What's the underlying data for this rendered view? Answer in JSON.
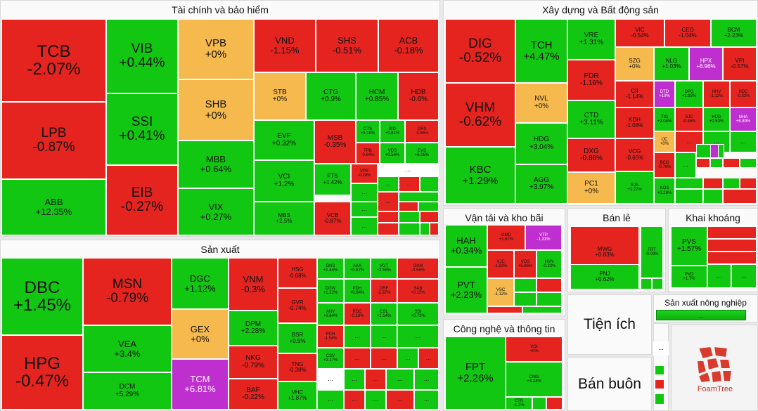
{
  "colors": {
    "up": "#12c712",
    "down": "#e52420",
    "flat": "#f5b94e",
    "ceiling": "#bf2fd0"
  },
  "more": "...",
  "sectors": {
    "finance": "Tài chính và bảo hiểm",
    "realestate": "Xây dựng và Bất động sản",
    "manufacturing": "Sản xuất",
    "transport": "Vận tải và kho bãi",
    "retail": "Bán lẻ",
    "mining": "Khai khoáng",
    "tech": "Công nghệ và thông tin",
    "agri": "Sản xuất nông nghiệp",
    "utilities": "Tiện ích",
    "wholesale": "Bán buôn"
  },
  "logo_text": "FoamTree",
  "tiles": [
    {
      "s": "TCB",
      "p": "-2.07%"
    },
    {
      "s": "LPB",
      "p": "-0.87%"
    },
    {
      "s": "ABB",
      "p": "+12.35%"
    },
    {
      "s": "VIB",
      "p": "+0.44%"
    },
    {
      "s": "SSI",
      "p": "+0.41%"
    },
    {
      "s": "EIB",
      "p": "-0.27%"
    },
    {
      "s": "VPB",
      "p": "+0%"
    },
    {
      "s": "SHB",
      "p": "+0%"
    },
    {
      "s": "MBB",
      "p": "+0.64%"
    },
    {
      "s": "VIX",
      "p": "+0.27%"
    },
    {
      "s": "VND",
      "p": "-1.15%"
    },
    {
      "s": "SHS",
      "p": "-0.51%"
    },
    {
      "s": "ACB",
      "p": "-0.18%"
    },
    {
      "s": "STB",
      "p": "+0%"
    },
    {
      "s": "CTG",
      "p": "+0.9%"
    },
    {
      "s": "HCM",
      "p": "+0.85%"
    },
    {
      "s": "HDB",
      "p": "-0.6%"
    },
    {
      "s": "EVF",
      "p": "+0.32%"
    },
    {
      "s": "MSB",
      "p": "-0.35%"
    },
    {
      "s": "CTS",
      "p": "+3.18%"
    },
    {
      "s": "BID",
      "p": "+0.81%"
    },
    {
      "s": "ORS",
      "p": "-0.66%"
    },
    {
      "s": "TPB",
      "p": "-0.64%"
    },
    {
      "s": "VDS",
      "p": "+0.54%"
    },
    {
      "s": "EVS",
      "p": "+6.06%"
    },
    {
      "s": "VCI",
      "p": "+1.2%"
    },
    {
      "s": "FTS",
      "p": "+1.42%"
    },
    {
      "s": "VPS",
      "p": "-0.28%"
    },
    {
      "s": "MBS",
      "p": "+2.5%"
    },
    {
      "s": "VCB",
      "p": "-0.87%"
    },
    {
      "s": "DIG",
      "p": "-0.52%"
    },
    {
      "s": "VHM",
      "p": "-0.62%"
    },
    {
      "s": "KBC",
      "p": "+1.29%"
    },
    {
      "s": "TCH",
      "p": "+4.47%"
    },
    {
      "s": "NVL",
      "p": "+0%"
    },
    {
      "s": "HDG",
      "p": "+3.04%"
    },
    {
      "s": "AGG",
      "p": "+3.97%"
    },
    {
      "s": "VRE",
      "p": "+1.31%"
    },
    {
      "s": "PDR",
      "p": "-1.16%"
    },
    {
      "s": "CTD",
      "p": "+3.11%"
    },
    {
      "s": "DXG",
      "p": "-0.86%"
    },
    {
      "s": "PC1",
      "p": "+0%"
    },
    {
      "s": "VIC",
      "p": "-0.54%"
    },
    {
      "s": "CEO",
      "p": "-1.04%"
    },
    {
      "s": "BCM",
      "p": "+2.23%"
    },
    {
      "s": "SZG",
      "p": "+0%"
    },
    {
      "s": "NLG",
      "p": "+1.03%"
    },
    {
      "s": "HPX",
      "p": "+6.96%"
    },
    {
      "s": "VPI",
      "p": "-0.57%"
    },
    {
      "s": "CII",
      "p": "-1.14%"
    },
    {
      "s": "DTD",
      "p": "+10%"
    },
    {
      "s": "DPG",
      "p": "+1.93%"
    },
    {
      "s": "HHV",
      "p": "-1.12%"
    },
    {
      "s": "HDC",
      "p": "-0.32%"
    },
    {
      "s": "KDH",
      "p": "-1.08%"
    },
    {
      "s": "TIG",
      "p": "+2.04%"
    },
    {
      "s": "SJC",
      "p": "-0.46%"
    },
    {
      "s": "HDG",
      "p": "+0.53%"
    },
    {
      "s": "NHA",
      "p": "+6.89%"
    },
    {
      "s": "IJC",
      "p": "+0%"
    },
    {
      "s": "VCG",
      "p": "-0.65%"
    },
    {
      "s": "BCG",
      "p": "-0.78%"
    },
    {
      "s": "SJS",
      "p": "+1.22%"
    },
    {
      "s": "KOS",
      "p": "+0.28%"
    },
    {
      "s": "DBC",
      "p": "+1.45%"
    },
    {
      "s": "HPG",
      "p": "-0.47%"
    },
    {
      "s": "MSN",
      "p": "-0.79%"
    },
    {
      "s": "VEA",
      "p": "+3.4%"
    },
    {
      "s": "DCM",
      "p": "+5.29%"
    },
    {
      "s": "DGC",
      "p": "+1.12%"
    },
    {
      "s": "GEX",
      "p": "+0%"
    },
    {
      "s": "TCM",
      "p": "+6.81%"
    },
    {
      "s": "VNM",
      "p": "-0.3%"
    },
    {
      "s": "DPM",
      "p": "+2.28%"
    },
    {
      "s": "NKG",
      "p": "-0.79%"
    },
    {
      "s": "BAF",
      "p": "-0.22%"
    },
    {
      "s": "HSG",
      "p": "-0.68%"
    },
    {
      "s": "GVR",
      "p": "-0.74%"
    },
    {
      "s": "BSR",
      "p": "+0.5%"
    },
    {
      "s": "TNG",
      "p": "-0.38%"
    },
    {
      "s": "VHC",
      "p": "+1.87%"
    },
    {
      "s": "GNS",
      "p": "+1.44%"
    },
    {
      "s": "AAA",
      "p": "+0.87%"
    },
    {
      "s": "VGT",
      "p": "+2.56%"
    },
    {
      "s": "GKM",
      "p": "-0.56%"
    },
    {
      "s": "DGW",
      "p": "+1.22%"
    },
    {
      "s": "PDH",
      "p": "+0.84%"
    },
    {
      "s": "DRF",
      "p": "-2.87%"
    },
    {
      "s": "SAB",
      "p": "+0.15%"
    },
    {
      "s": "ANV",
      "p": "+0.64%"
    },
    {
      "s": "RDC",
      "p": "-0.18%"
    },
    {
      "s": "CSL",
      "p": "+1.14%"
    },
    {
      "s": "SSI",
      "p": "+0.73%"
    },
    {
      "s": "PCH",
      "p": "-1.54%"
    },
    {
      "s": "CSV",
      "p": "+2.17%"
    },
    {
      "s": "HAH",
      "p": "+0.34%"
    },
    {
      "s": "PVT",
      "p": "+2.23%"
    },
    {
      "s": "GMD",
      "p": "+1.67%"
    },
    {
      "s": "VTP",
      "p": "-1.31%"
    },
    {
      "s": "VJC",
      "p": "-1.83%"
    },
    {
      "s": "VOS",
      "p": "+6.86%"
    },
    {
      "s": "HVN",
      "p": "-0.22%"
    },
    {
      "s": "VSC",
      "p": "-1.12%"
    },
    {
      "s": "FPT",
      "p": "+2.26%"
    },
    {
      "s": "VGI",
      "p": "+0%"
    },
    {
      "s": "CMG",
      "p": "+4.24%"
    },
    {
      "s": "CTR",
      "p": "-1.2%"
    },
    {
      "s": "MWG",
      "p": "+0.83%"
    },
    {
      "s": "PNJ",
      "p": "+0.62%"
    },
    {
      "s": "FRT",
      "p": "-0.09%"
    },
    {
      "s": "PVS",
      "p": "+1.57%"
    },
    {
      "s": "PVD",
      "p": "+1.7%"
    }
  ]
}
